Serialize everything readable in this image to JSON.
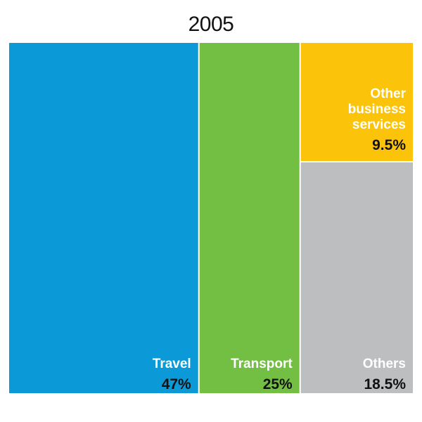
{
  "chart_data": {
    "type": "treemap",
    "title": "2005",
    "tiles": [
      {
        "name": "Travel",
        "lines": [
          "Travel"
        ],
        "value": 47,
        "label": "47%",
        "color": "#0b9ad7"
      },
      {
        "name": "Transport",
        "lines": [
          "Transport"
        ],
        "value": 25,
        "label": "25%",
        "color": "#73bf44"
      },
      {
        "name": "Other business services",
        "lines": [
          "Other",
          "business",
          "services"
        ],
        "value": 9.5,
        "label": "9.5%",
        "color": "#fcc30b"
      },
      {
        "name": "Others",
        "lines": [
          "Others"
        ],
        "value": 18.5,
        "label": "18.5%",
        "color": "#bdbec0"
      }
    ]
  }
}
